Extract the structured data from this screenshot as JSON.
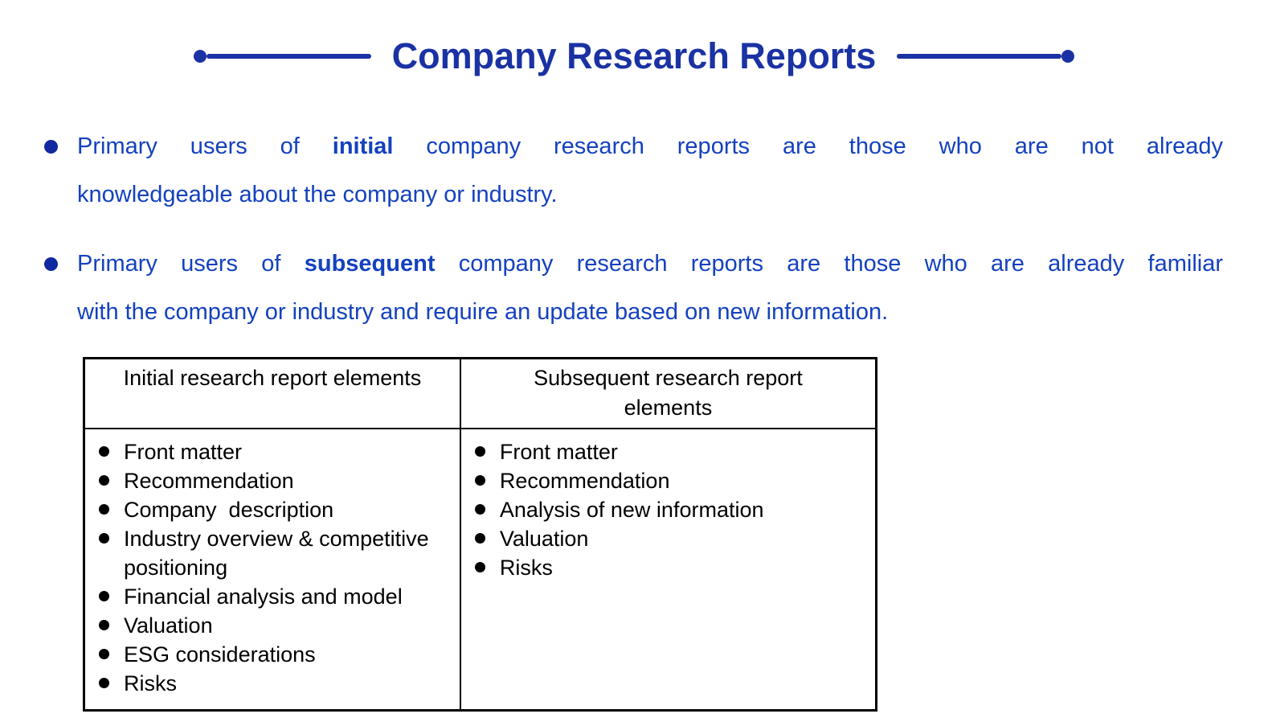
{
  "header": {
    "title": "Company Research Reports"
  },
  "colors": {
    "title_blue": "#1A32A3",
    "body_text_blue": "#1441BE",
    "bullet_dot_blue": "#1129A0",
    "table_text_black": "#000000"
  },
  "icons": {
    "title_left_decoration": "dot-then-line",
    "title_right_decoration": "line-then-dot",
    "bullet_marker": "filled-circle",
    "table_bullet_marker": "filled-circle"
  },
  "bullets": [
    {
      "lines": [
        {
          "justify": true,
          "segments": [
            {
              "text": "Primary users of "
            },
            {
              "text": "initial",
              "bold": true
            },
            {
              "text": " company research reports are those who are not already"
            }
          ]
        },
        {
          "justify": false,
          "segments": [
            {
              "text": "knowledgeable about the company or industry."
            }
          ]
        }
      ]
    },
    {
      "lines": [
        {
          "justify": true,
          "segments": [
            {
              "text": "Primary users of "
            },
            {
              "text": "subsequent",
              "bold": true
            },
            {
              "text": " company research reports are those who are already familiar"
            }
          ]
        },
        {
          "justify": false,
          "segments": [
            {
              "text": "with the company or industry and require an update based on new information."
            }
          ]
        }
      ]
    }
  ],
  "table": {
    "headers": [
      "Initial research report elements",
      "Subsequent research report elements"
    ],
    "columns": [
      {
        "items": [
          "Front matter",
          "Recommendation",
          "Company  description",
          "Industry overview & competitive positioning",
          "Financial analysis and model",
          "Valuation",
          "ESG considerations",
          "Risks"
        ]
      },
      {
        "items": [
          "Front matter",
          "Recommendation",
          "Analysis of new information",
          "Valuation",
          "Risks"
        ]
      }
    ]
  }
}
